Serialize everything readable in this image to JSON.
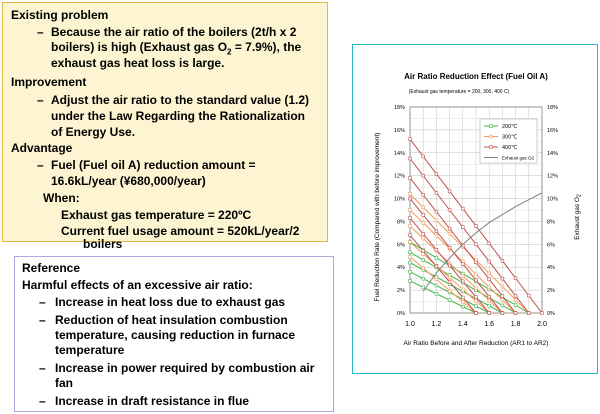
{
  "problem": {
    "heading": "Existing problem",
    "line1": "Because the air ratio of the boilers (2t/h x 2",
    "line2_pre": "boilers) is high (Exhaust gas O",
    "line2_sub": "2",
    "line2_post": " = 7.9%), the",
    "line3": "exhaust gas heat loss is large."
  },
  "improvement": {
    "heading": "Improvement",
    "line1": "Adjust the air ratio to the standard value (1.2)",
    "line2": "under the Law Regarding the Rationalization",
    "line3": "of Energy Use."
  },
  "advantage": {
    "heading": "Advantage",
    "line1": "Fuel (Fuel oil A) reduction amount =",
    "line2": "16.6kL/year (¥680,000/year)",
    "when": "When:",
    "exhaust_temp": "Exhaust gas temperature = 220ºC",
    "usage_line1": "Current fuel usage amount = 520kL/year/2",
    "usage_line2": "boilers"
  },
  "reference": {
    "heading": "Reference",
    "subheading": "Harmful effects of an excessive air ratio:",
    "item1": "Increase in heat loss due to exhaust gas",
    "item2_l1": "Reduction of heat insulation combustion",
    "item2_l2": "temperature, causing reduction in furnace",
    "item2_l3": "temperature",
    "item3_l1": "Increase in power required by combustion air",
    "item3_l2": "fan",
    "item4": "Increase in draft resistance in flue"
  },
  "dash_glyph": "–",
  "colors": {
    "box_fill": "#fdf5d2",
    "box_border": "#e0b848",
    "ref_border": "#b9a5dd",
    "chart_border": "#2bb3c8",
    "c200": "#3cb84a",
    "c300": "#f59a5a",
    "c400": "#c0504d",
    "exhaust": "#7f7f7f"
  },
  "chart_data": {
    "type": "line",
    "title": "Air Ratio Reduction Effect (Fuel Oil A)",
    "subtitle": "(Exhaust gas temperature = 200, 300, 400 C)",
    "xlabel": "Air Ratio Before and After Reduction (AR1 to AR2)",
    "ylabel": "Fuel Reduction Rate (Compared with before improvement)",
    "y2label_pre": "Exhaust gas O",
    "y2label_sub": "2",
    "xlim": [
      1.0,
      2.0
    ],
    "ylim": [
      0,
      18
    ],
    "y2lim": [
      0,
      18
    ],
    "x_ticks": [
      "1.0",
      "1.2",
      "1.4",
      "1.6",
      "1.8",
      "2.0"
    ],
    "y_ticks": [
      "0%",
      "2%",
      "4%",
      "6%",
      "8%",
      "10%",
      "12%",
      "14%",
      "16%",
      "18%"
    ],
    "y2_ticks": [
      "0%",
      "2%",
      "4%",
      "6%",
      "8%",
      "10%",
      "12%",
      "14%",
      "16%",
      "18%"
    ],
    "grid": true,
    "legend_position": "top-right",
    "legend": [
      "200℃",
      "300℃",
      "400℃",
      "Exhaust gas O2"
    ],
    "series": [
      {
        "name": "200℃",
        "lines": [
          {
            "x": [
              1.0,
              1.9
            ],
            "y": [
              6.2,
              0
            ]
          },
          {
            "x": [
              1.0,
              1.8
            ],
            "y": [
              5.3,
              0
            ]
          },
          {
            "x": [
              1.0,
              1.7
            ],
            "y": [
              4.4,
              0
            ]
          },
          {
            "x": [
              1.0,
              1.6
            ],
            "y": [
              3.6,
              0
            ]
          },
          {
            "x": [
              1.0,
              1.5
            ],
            "y": [
              2.8,
              0
            ]
          }
        ]
      },
      {
        "name": "300℃",
        "lines": [
          {
            "x": [
              1.0,
              1.9
            ],
            "y": [
              10.4,
              0
            ]
          },
          {
            "x": [
              1.0,
              1.8
            ],
            "y": [
              9.0,
              0
            ]
          },
          {
            "x": [
              1.0,
              1.7
            ],
            "y": [
              7.6,
              0
            ]
          },
          {
            "x": [
              1.0,
              1.6
            ],
            "y": [
              6.2,
              0
            ]
          },
          {
            "x": [
              1.0,
              1.5
            ],
            "y": [
              4.9,
              0
            ]
          }
        ]
      },
      {
        "name": "400℃",
        "lines": [
          {
            "x": [
              1.0,
              2.0
            ],
            "y": [
              15.2,
              0
            ]
          },
          {
            "x": [
              1.0,
              1.9
            ],
            "y": [
              13.5,
              0
            ]
          },
          {
            "x": [
              1.0,
              1.8
            ],
            "y": [
              11.8,
              0
            ]
          },
          {
            "x": [
              1.0,
              1.7
            ],
            "y": [
              10.0,
              0
            ]
          },
          {
            "x": [
              1.0,
              1.6
            ],
            "y": [
              8.3,
              0
            ]
          },
          {
            "x": [
              1.0,
              1.5
            ],
            "y": [
              6.8,
              0
            ]
          }
        ]
      },
      {
        "name": "Exhaust gas O2",
        "axis": "right",
        "x": [
          1.1,
          1.2,
          1.3,
          1.4,
          1.5,
          1.6,
          1.7,
          1.8,
          1.9,
          2.0
        ],
        "y": [
          1.9,
          3.5,
          4.8,
          6.0,
          7.0,
          7.9,
          8.6,
          9.3,
          9.9,
          10.5
        ]
      }
    ]
  }
}
